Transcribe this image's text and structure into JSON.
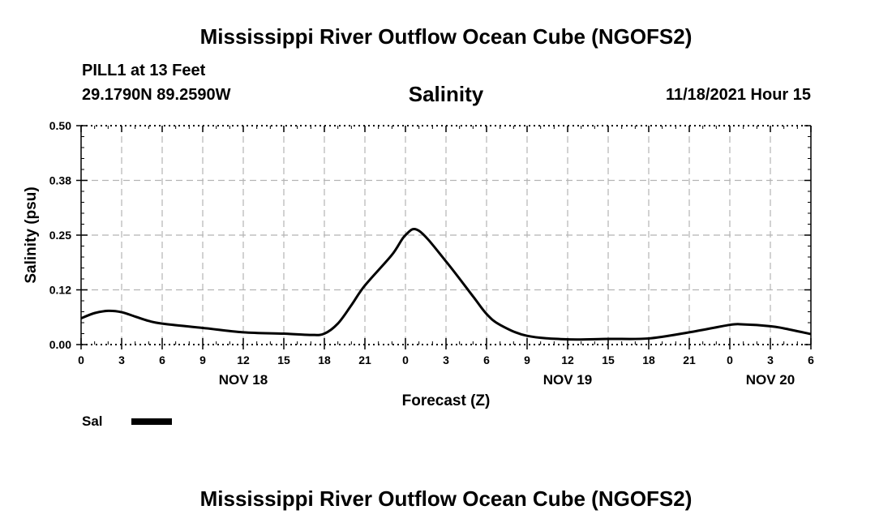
{
  "header": {
    "title": "Mississippi River Outflow Ocean Cube (NGOFS2)",
    "station": "PILL1 at 13 Feet",
    "coordinates": "29.1790N  89.2590W",
    "timestamp": "11/18/2021 Hour 15"
  },
  "footer": {
    "title": "Mississippi River Outflow Ocean Cube (NGOFS2)"
  },
  "chart_data": {
    "type": "line",
    "title": "Salinity",
    "xlabel": "Forecast (Z)",
    "ylabel": "Salinity (psu)",
    "xlim": [
      0,
      54
    ],
    "ylim": [
      0,
      0.5
    ],
    "y_tick_values": [
      0,
      0.125,
      0.25,
      0.375,
      0.5
    ],
    "y_tick_labels": [
      "0.00",
      "0.12",
      "0.25",
      "0.38",
      "0.50"
    ],
    "x_tick_values": [
      0,
      3,
      6,
      9,
      12,
      15,
      18,
      21,
      24,
      27,
      30,
      33,
      36,
      39,
      42,
      45,
      48,
      51,
      54
    ],
    "x_tick_labels": [
      "0",
      "3",
      "6",
      "9",
      "12",
      "15",
      "18",
      "21",
      "0",
      "3",
      "6",
      "9",
      "12",
      "15",
      "18",
      "21",
      "0",
      "3",
      "6"
    ],
    "day_labels": [
      {
        "label": "NOV 18",
        "at": 12
      },
      {
        "label": "NOV 19",
        "at": 36
      },
      {
        "label": "NOV 20",
        "at": 51
      }
    ],
    "grid": true,
    "legend_position": "bottom-left",
    "series": [
      {
        "name": "Sal",
        "color": "#000000",
        "x": [
          0,
          1,
          2,
          3,
          4,
          5,
          6,
          9,
          12,
          15,
          17,
          18,
          19,
          20,
          21,
          23,
          24,
          25,
          27,
          29,
          30,
          31,
          33,
          36,
          39,
          42,
          45,
          48,
          49,
          51,
          52,
          54
        ],
        "y": [
          0.06,
          0.072,
          0.077,
          0.074,
          0.064,
          0.054,
          0.048,
          0.038,
          0.028,
          0.025,
          0.022,
          0.025,
          0.048,
          0.09,
          0.135,
          0.205,
          0.25,
          0.26,
          0.19,
          0.11,
          0.07,
          0.045,
          0.02,
          0.012,
          0.013,
          0.014,
          0.028,
          0.045,
          0.046,
          0.042,
          0.037,
          0.024
        ]
      }
    ]
  }
}
